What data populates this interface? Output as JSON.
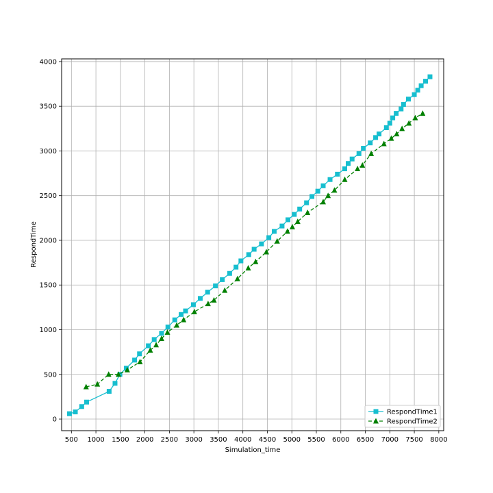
{
  "chart_data": {
    "type": "line",
    "xlabel": "Simulation_time",
    "ylabel": "RespondTime",
    "xlim": [
      300,
      8100
    ],
    "ylim": [
      -130,
      4030
    ],
    "xticks": [
      500,
      1000,
      1500,
      2000,
      2500,
      3000,
      3500,
      4000,
      4500,
      5000,
      5500,
      6000,
      6500,
      7000,
      7500,
      8000
    ],
    "yticks": [
      0,
      500,
      1000,
      1500,
      2000,
      2500,
      3000,
      3500,
      4000
    ],
    "grid": true,
    "legend_position": "lower-right",
    "series": [
      {
        "name": "RespondTime1",
        "color": "#17becf",
        "marker": "square",
        "linestyle": "solid",
        "points": [
          [
            460,
            60
          ],
          [
            580,
            80
          ],
          [
            710,
            140
          ],
          [
            810,
            190
          ],
          [
            1270,
            310
          ],
          [
            1390,
            400
          ],
          [
            1490,
            500
          ],
          [
            1620,
            570
          ],
          [
            1790,
            660
          ],
          [
            1890,
            730
          ],
          [
            2070,
            820
          ],
          [
            2190,
            890
          ],
          [
            2340,
            960
          ],
          [
            2470,
            1030
          ],
          [
            2610,
            1110
          ],
          [
            2740,
            1170
          ],
          [
            2830,
            1210
          ],
          [
            2990,
            1280
          ],
          [
            3130,
            1350
          ],
          [
            3280,
            1420
          ],
          [
            3440,
            1490
          ],
          [
            3580,
            1560
          ],
          [
            3730,
            1630
          ],
          [
            3860,
            1700
          ],
          [
            3960,
            1770
          ],
          [
            4120,
            1840
          ],
          [
            4230,
            1900
          ],
          [
            4380,
            1960
          ],
          [
            4530,
            2030
          ],
          [
            4640,
            2100
          ],
          [
            4800,
            2160
          ],
          [
            4920,
            2230
          ],
          [
            5050,
            2290
          ],
          [
            5160,
            2350
          ],
          [
            5300,
            2420
          ],
          [
            5410,
            2490
          ],
          [
            5530,
            2550
          ],
          [
            5640,
            2610
          ],
          [
            5780,
            2680
          ],
          [
            5930,
            2740
          ],
          [
            6080,
            2800
          ],
          [
            6150,
            2860
          ],
          [
            6230,
            2910
          ],
          [
            6370,
            2970
          ],
          [
            6460,
            3030
          ],
          [
            6600,
            3090
          ],
          [
            6710,
            3150
          ],
          [
            6780,
            3190
          ],
          [
            6930,
            3260
          ],
          [
            7000,
            3310
          ],
          [
            7060,
            3370
          ],
          [
            7130,
            3420
          ],
          [
            7230,
            3470
          ],
          [
            7280,
            3520
          ],
          [
            7380,
            3580
          ],
          [
            7500,
            3630
          ],
          [
            7570,
            3680
          ],
          [
            7640,
            3730
          ],
          [
            7730,
            3780
          ],
          [
            7820,
            3830
          ]
        ]
      },
      {
        "name": "RespondTime2",
        "color": "#008000",
        "marker": "triangle",
        "linestyle": "dashed",
        "points": [
          [
            800,
            360
          ],
          [
            1030,
            390
          ],
          [
            1260,
            500
          ],
          [
            1460,
            500
          ],
          [
            1640,
            550
          ],
          [
            1900,
            640
          ],
          [
            2110,
            770
          ],
          [
            2230,
            830
          ],
          [
            2340,
            900
          ],
          [
            2460,
            970
          ],
          [
            2650,
            1050
          ],
          [
            2790,
            1110
          ],
          [
            3010,
            1200
          ],
          [
            3290,
            1290
          ],
          [
            3410,
            1330
          ],
          [
            3630,
            1440
          ],
          [
            3890,
            1570
          ],
          [
            4110,
            1690
          ],
          [
            4260,
            1760
          ],
          [
            4480,
            1870
          ],
          [
            4700,
            1990
          ],
          [
            4910,
            2100
          ],
          [
            5010,
            2150
          ],
          [
            5120,
            2210
          ],
          [
            5320,
            2310
          ],
          [
            5640,
            2430
          ],
          [
            5740,
            2500
          ],
          [
            5870,
            2560
          ],
          [
            6080,
            2680
          ],
          [
            6340,
            2800
          ],
          [
            6440,
            2840
          ],
          [
            6620,
            2970
          ],
          [
            6880,
            3080
          ],
          [
            7030,
            3140
          ],
          [
            7140,
            3190
          ],
          [
            7250,
            3250
          ],
          [
            7390,
            3310
          ],
          [
            7520,
            3370
          ],
          [
            7670,
            3420
          ]
        ]
      }
    ]
  }
}
